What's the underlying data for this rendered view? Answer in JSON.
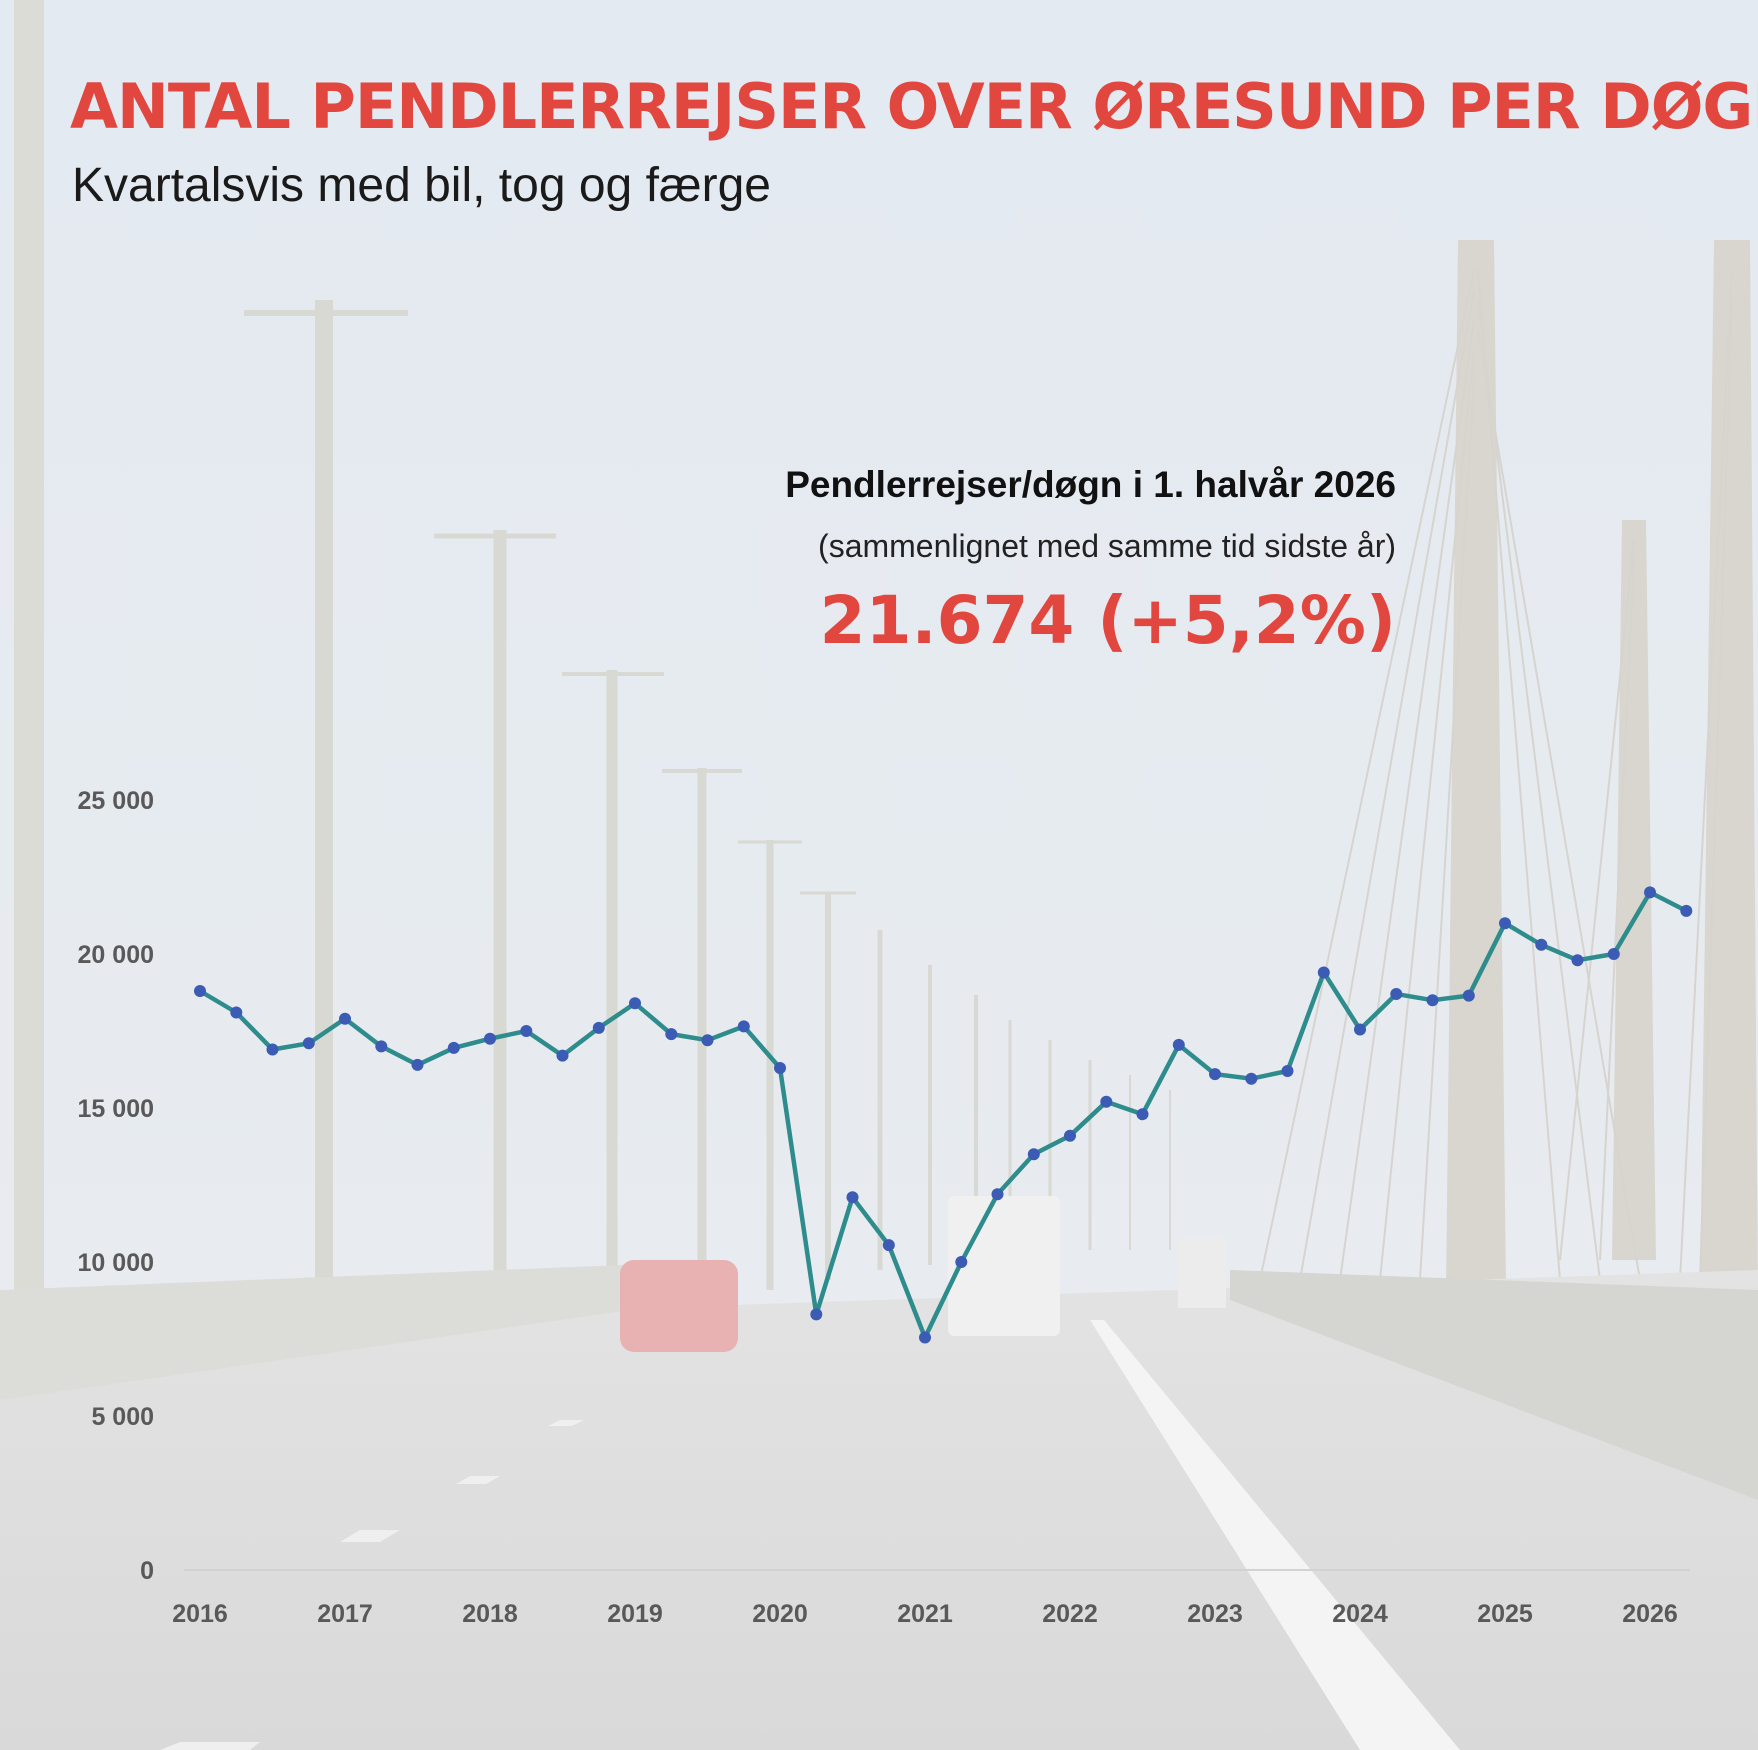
{
  "header": {
    "title": "ANTAL PENDLERREJSER OVER ØRESUND PER DØGN",
    "subtitle": "Kvartalsvis med bil, tog og færge"
  },
  "callout": {
    "heading": "Pendlerrejser/døgn i 1. halvår 2026",
    "note": "(sammenlignet med samme tid sidste år)",
    "value": "21.674 (+5,2%)"
  },
  "colors": {
    "accent_red": "#e2473f",
    "line": "#2e8c8c",
    "marker": "#3b5bb5",
    "axis_text": "#595959",
    "background_sky": "#e6ebf1",
    "background_road": "#e2e2e2"
  },
  "chart_data": {
    "type": "line",
    "title": "",
    "xlabel": "",
    "ylabel": "",
    "ylim": [
      0,
      25000
    ],
    "yticks": [
      0,
      5000,
      10000,
      15000,
      20000,
      25000
    ],
    "ytick_labels": [
      "0",
      "5 000",
      "10 000",
      "15 000",
      "20 000",
      "25 000"
    ],
    "xticks": [
      "2016",
      "2017",
      "2018",
      "2019",
      "2020",
      "2021",
      "2022",
      "2023",
      "2024",
      "2025",
      "2026"
    ],
    "grid": false,
    "legend": "none",
    "series": [
      {
        "values": [
          18800,
          18100,
          16900,
          17100,
          17900,
          17000,
          16400,
          16950,
          17250,
          17500,
          16700,
          17600,
          18400,
          17400,
          17200,
          17650,
          16300,
          8300,
          12100,
          10550,
          7550,
          10000,
          12200,
          13500,
          14100,
          15200,
          14800,
          17050,
          16100,
          15950,
          16200,
          19400,
          17550,
          18700,
          18500,
          18650,
          21000,
          20300,
          19800,
          20000,
          22000,
          21400
        ]
      }
    ]
  }
}
